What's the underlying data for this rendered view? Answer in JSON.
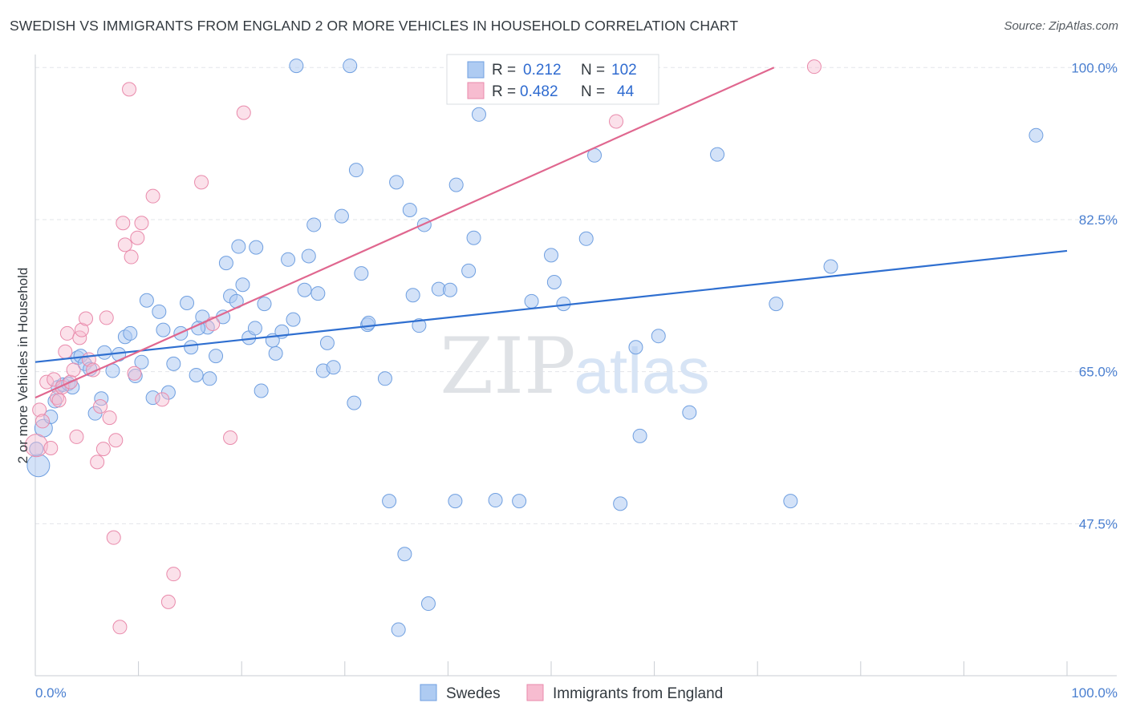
{
  "title": "SWEDISH VS IMMIGRANTS FROM ENGLAND 2 OR MORE VEHICLES IN HOUSEHOLD CORRELATION CHART",
  "source": "Source: ZipAtlas.com",
  "watermark": {
    "zip": "ZIP",
    "atlas": "atlas"
  },
  "colors": {
    "blue_fill": "#aecbf2",
    "blue_stroke": "#6f9fe0",
    "blue_line": "#2f6fd0",
    "pink_fill": "#f7bcd0",
    "pink_stroke": "#e98aab",
    "pink_line": "#e0678f",
    "tick_text": "#4a7fd0",
    "grid": "#e2e5ea"
  },
  "legend": {
    "rows": [
      {
        "r_label": "R =",
        "r_value": "0.212",
        "n_label": "N =",
        "n_value": "102"
      },
      {
        "r_label": "R =",
        "r_value": "0.482",
        "n_label": "N =",
        "n_value": "44"
      }
    ]
  },
  "chart_data": {
    "type": "scatter",
    "title": "SWEDISH VS IMMIGRANTS FROM ENGLAND 2 OR MORE VEHICLES IN HOUSEHOLD CORRELATION CHART",
    "xlabel": "",
    "ylabel": "2 or more Vehicles in Household",
    "xlim": [
      0,
      100
    ],
    "ylim": [
      30,
      101.5
    ],
    "x_tick_labels": [
      "0.0%",
      "100.0%"
    ],
    "y_ticks": [
      47.5,
      65.0,
      82.5,
      100.0
    ],
    "y_tick_labels": [
      "47.5%",
      "65.0%",
      "82.5%",
      "100.0%"
    ],
    "grid": true,
    "legend_position": "top-center",
    "series": [
      {
        "name": "Swedes",
        "color": "#aecbf2",
        "trend": {
          "x": [
            0,
            100
          ],
          "y": [
            66.1,
            78.9
          ]
        },
        "points": [
          [
            0.3,
            54.2
          ],
          [
            0.8,
            58.5
          ],
          [
            1.5,
            59.8
          ],
          [
            1.9,
            61.6
          ],
          [
            2.2,
            63.2
          ],
          [
            2.7,
            63.5
          ],
          [
            3.2,
            63.6
          ],
          [
            3.6,
            63.2
          ],
          [
            4.1,
            66.6
          ],
          [
            4.4,
            66.8
          ],
          [
            4.8,
            65.9
          ],
          [
            5.3,
            65.3
          ],
          [
            5.8,
            60.2
          ],
          [
            6.4,
            61.9
          ],
          [
            6.7,
            67.2
          ],
          [
            7.5,
            65.1
          ],
          [
            8.1,
            67.0
          ],
          [
            8.7,
            69.0
          ],
          [
            9.2,
            69.4
          ],
          [
            9.7,
            64.5
          ],
          [
            10.3,
            66.1
          ],
          [
            10.8,
            73.2
          ],
          [
            11.4,
            62.0
          ],
          [
            12.0,
            71.9
          ],
          [
            12.4,
            69.8
          ],
          [
            12.9,
            62.6
          ],
          [
            13.4,
            65.9
          ],
          [
            14.1,
            69.4
          ],
          [
            14.7,
            72.9
          ],
          [
            15.1,
            67.8
          ],
          [
            15.6,
            64.6
          ],
          [
            16.2,
            71.3
          ],
          [
            16.7,
            70.1
          ],
          [
            16.9,
            64.2
          ],
          [
            17.5,
            66.8
          ],
          [
            18.2,
            71.3
          ],
          [
            18.5,
            77.5
          ],
          [
            18.9,
            73.7
          ],
          [
            19.5,
            73.1
          ],
          [
            19.7,
            79.4
          ],
          [
            20.1,
            75.0
          ],
          [
            20.7,
            68.9
          ],
          [
            21.4,
            79.3
          ],
          [
            21.9,
            62.8
          ],
          [
            22.2,
            72.8
          ],
          [
            23.0,
            68.6
          ],
          [
            23.3,
            67.1
          ],
          [
            23.9,
            69.6
          ],
          [
            24.5,
            77.9
          ],
          [
            25.0,
            71.0
          ],
          [
            25.3,
            100.2
          ],
          [
            26.1,
            74.4
          ],
          [
            26.5,
            78.3
          ],
          [
            27.0,
            81.9
          ],
          [
            27.4,
            74.0
          ],
          [
            27.9,
            65.1
          ],
          [
            28.3,
            68.3
          ],
          [
            28.9,
            65.5
          ],
          [
            29.7,
            82.9
          ],
          [
            30.5,
            100.2
          ],
          [
            30.9,
            61.4
          ],
          [
            31.1,
            88.2
          ],
          [
            31.6,
            76.3
          ],
          [
            32.2,
            70.4
          ],
          [
            32.3,
            70.6
          ],
          [
            33.9,
            64.2
          ],
          [
            34.3,
            50.1
          ],
          [
            35.0,
            86.8
          ],
          [
            35.2,
            35.3
          ],
          [
            35.8,
            44.0
          ],
          [
            36.3,
            83.6
          ],
          [
            36.6,
            73.8
          ],
          [
            37.2,
            70.3
          ],
          [
            37.7,
            81.9
          ],
          [
            38.1,
            38.3
          ],
          [
            39.1,
            74.5
          ],
          [
            40.2,
            74.4
          ],
          [
            40.7,
            50.1
          ],
          [
            40.8,
            86.5
          ],
          [
            42.0,
            76.6
          ],
          [
            42.5,
            80.4
          ],
          [
            43.0,
            94.6
          ],
          [
            44.6,
            50.2
          ],
          [
            46.9,
            50.1
          ],
          [
            48.1,
            73.1
          ],
          [
            50.0,
            78.4
          ],
          [
            50.3,
            75.3
          ],
          [
            51.2,
            72.8
          ],
          [
            53.4,
            80.3
          ],
          [
            54.2,
            89.9
          ],
          [
            56.7,
            49.8
          ],
          [
            58.2,
            67.8
          ],
          [
            58.6,
            57.6
          ],
          [
            60.4,
            69.1
          ],
          [
            63.4,
            60.3
          ],
          [
            66.1,
            90.0
          ],
          [
            71.8,
            72.8
          ],
          [
            73.2,
            50.1
          ],
          [
            77.1,
            77.1
          ],
          [
            97.0,
            92.2
          ],
          [
            0.1,
            56.1
          ],
          [
            15.8,
            70.0
          ],
          [
            21.3,
            70.0
          ]
        ]
      },
      {
        "name": "Immigrants from England",
        "color": "#f7bcd0",
        "trend": {
          "x": [
            0,
            71.6
          ],
          "y": [
            62.0,
            100.0
          ]
        },
        "points": [
          [
            0.1,
            56.5
          ],
          [
            0.4,
            60.6
          ],
          [
            0.7,
            59.3
          ],
          [
            1.1,
            63.8
          ],
          [
            1.5,
            56.2
          ],
          [
            1.8,
            64.1
          ],
          [
            2.1,
            62.0
          ],
          [
            2.3,
            61.7
          ],
          [
            2.6,
            63.2
          ],
          [
            2.9,
            67.3
          ],
          [
            3.1,
            69.4
          ],
          [
            3.4,
            63.8
          ],
          [
            3.7,
            65.2
          ],
          [
            4.0,
            57.5
          ],
          [
            4.3,
            68.9
          ],
          [
            4.5,
            69.8
          ],
          [
            4.9,
            71.1
          ],
          [
            5.2,
            66.4
          ],
          [
            5.6,
            65.2
          ],
          [
            6.0,
            54.6
          ],
          [
            6.3,
            61.0
          ],
          [
            6.6,
            56.1
          ],
          [
            6.9,
            71.2
          ],
          [
            7.2,
            59.7
          ],
          [
            7.6,
            45.9
          ],
          [
            7.8,
            57.1
          ],
          [
            8.2,
            35.6
          ],
          [
            8.5,
            82.1
          ],
          [
            8.7,
            79.6
          ],
          [
            9.1,
            97.5
          ],
          [
            9.3,
            78.2
          ],
          [
            9.6,
            64.8
          ],
          [
            9.9,
            80.4
          ],
          [
            10.3,
            82.1
          ],
          [
            11.4,
            85.2
          ],
          [
            12.3,
            61.8
          ],
          [
            12.9,
            38.5
          ],
          [
            13.4,
            41.7
          ],
          [
            16.1,
            86.8
          ],
          [
            17.2,
            70.5
          ],
          [
            18.9,
            57.4
          ],
          [
            20.2,
            94.8
          ],
          [
            56.3,
            93.8
          ],
          [
            75.5,
            100.1
          ]
        ]
      }
    ]
  },
  "bottom_legend": [
    {
      "label": "Swedes"
    },
    {
      "label": "Immigrants from England"
    }
  ]
}
